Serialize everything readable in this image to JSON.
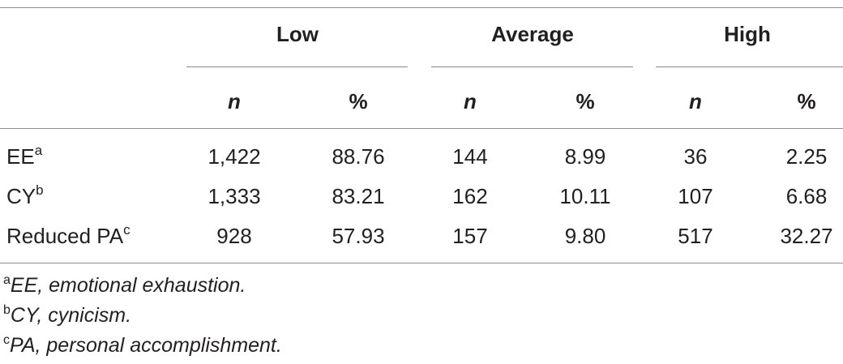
{
  "table": {
    "groups": [
      "Low",
      "Average",
      "High"
    ],
    "subheaders": [
      "n",
      "%",
      "n",
      "%",
      "n",
      "%"
    ],
    "rows": [
      {
        "label": "EE",
        "sup": "a",
        "values": [
          "1,422",
          "88.76",
          "144",
          "8.99",
          "36",
          "2.25"
        ]
      },
      {
        "label": "CY",
        "sup": "b",
        "values": [
          "1,333",
          "83.21",
          "162",
          "10.11",
          "107",
          "6.68"
        ]
      },
      {
        "label": "Reduced PA",
        "sup": "c",
        "values": [
          "928",
          "57.93",
          "157",
          "9.80",
          "517",
          "32.27"
        ]
      }
    ]
  },
  "footnotes": [
    {
      "mark": "a",
      "text": "EE, emotional exhaustion."
    },
    {
      "mark": "b",
      "text": "CY, cynicism."
    },
    {
      "mark": "c",
      "text": "PA, personal accomplishment."
    }
  ]
}
